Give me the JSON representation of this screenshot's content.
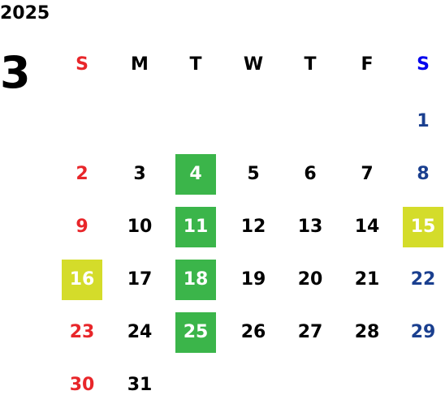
{
  "year": "2025",
  "month": "3",
  "weekdays": [
    "S",
    "M",
    "T",
    "W",
    "T",
    "F",
    "S"
  ],
  "weekday_colors": [
    "#e8262a",
    "#000000",
    "#000000",
    "#000000",
    "#000000",
    "#000000",
    "#0000ee"
  ],
  "day_colors": [
    "#e8262a",
    "#000000",
    "#000000",
    "#000000",
    "#000000",
    "#000000",
    "#1a3f8f"
  ],
  "weeks": [
    [
      null,
      null,
      null,
      null,
      null,
      null,
      {
        "day": 1
      }
    ],
    [
      {
        "day": 2
      },
      {
        "day": 3
      },
      {
        "day": 4,
        "highlight": "#3bb54a"
      },
      {
        "day": 5
      },
      {
        "day": 6
      },
      {
        "day": 7
      },
      {
        "day": 8
      }
    ],
    [
      {
        "day": 9
      },
      {
        "day": 10
      },
      {
        "day": 11,
        "highlight": "#3bb54a"
      },
      {
        "day": 12
      },
      {
        "day": 13
      },
      {
        "day": 14
      },
      {
        "day": 15,
        "highlight": "#d4dc2a"
      }
    ],
    [
      {
        "day": 16,
        "highlight": "#d4dc2a"
      },
      {
        "day": 17
      },
      {
        "day": 18,
        "highlight": "#3bb54a"
      },
      {
        "day": 19
      },
      {
        "day": 20
      },
      {
        "day": 21
      },
      {
        "day": 22
      }
    ],
    [
      {
        "day": 23
      },
      {
        "day": 24
      },
      {
        "day": 25,
        "highlight": "#3bb54a"
      },
      {
        "day": 26
      },
      {
        "day": 27
      },
      {
        "day": 28
      },
      {
        "day": 29
      }
    ],
    [
      {
        "day": 30
      },
      {
        "day": 31
      },
      null,
      null,
      null,
      null,
      null
    ]
  ]
}
